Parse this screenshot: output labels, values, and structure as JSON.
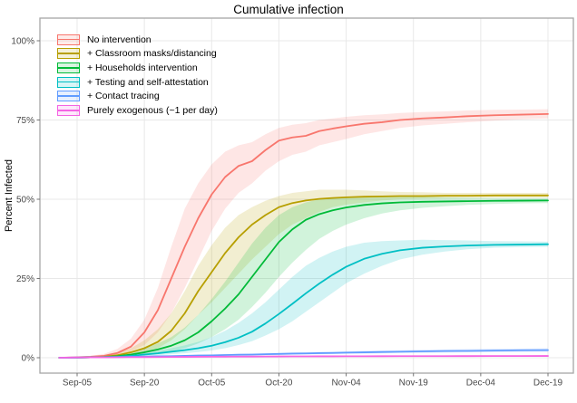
{
  "chart_data": {
    "type": "line",
    "title": "Cumulative infection",
    "xlabel": "",
    "ylabel": "Percent Infected",
    "ylim": [
      0,
      100
    ],
    "grid": "major-only",
    "legend_position": "top-left-inside",
    "x_unit": "days-since-Aug-28",
    "x_ticks": [
      {
        "label": "Sep-05",
        "day": 8
      },
      {
        "label": "Sep-20",
        "day": 23
      },
      {
        "label": "Oct-05",
        "day": 38
      },
      {
        "label": "Oct-20",
        "day": 53
      },
      {
        "label": "Nov-04",
        "day": 68
      },
      {
        "label": "Nov-19",
        "day": 83
      },
      {
        "label": "Dec-04",
        "day": 98
      },
      {
        "label": "Dec-19",
        "day": 113
      }
    ],
    "y_ticks": [
      {
        "label": "0%",
        "value": 0
      },
      {
        "label": "25%",
        "value": 25
      },
      {
        "label": "50%",
        "value": 50
      },
      {
        "label": "75%",
        "value": 75
      },
      {
        "label": "100%",
        "value": 100
      }
    ],
    "x_days": [
      4,
      7,
      11,
      14,
      17,
      20,
      23,
      26,
      29,
      32,
      35,
      38,
      41,
      44,
      47,
      50,
      53,
      56,
      59,
      62,
      65,
      68,
      72,
      76,
      80,
      85,
      90,
      95,
      101,
      107,
      113
    ],
    "series": [
      {
        "id": "no_intervention",
        "label": "No intervention",
        "color": "#F8766D",
        "mean": [
          0,
          0.1,
          0.3,
          0.6,
          1.5,
          3.5,
          8,
          15,
          25,
          35,
          44,
          51.5,
          57,
          60.5,
          62,
          65.5,
          68.5,
          69.5,
          70,
          71.5,
          72.3,
          73,
          73.8,
          74.3,
          75,
          75.5,
          75.8,
          76.2,
          76.5,
          76.7,
          76.9
        ],
        "lo": [
          0,
          0,
          0.1,
          0.3,
          0.8,
          2,
          4,
          8,
          14,
          22,
          31,
          40,
          47,
          52,
          55,
          59,
          62,
          64,
          65,
          67,
          68,
          69,
          70.5,
          71.5,
          72.5,
          73.3,
          73.8,
          74.3,
          74.8,
          75.2,
          75.5
        ],
        "hi": [
          0,
          0.2,
          0.6,
          1.2,
          2.8,
          6,
          12,
          22,
          35,
          47,
          55,
          61,
          65,
          67,
          68,
          70.5,
          72.5,
          73.5,
          74,
          75,
          75.5,
          76,
          76.5,
          76.8,
          77.2,
          77.5,
          77.7,
          78,
          78.2,
          78.3,
          78.4
        ]
      },
      {
        "id": "classroom_masks",
        "label": "+ Classroom masks/distancing",
        "color": "#B79F00",
        "mean": [
          0,
          0,
          0.1,
          0.3,
          0.8,
          1.7,
          3,
          5,
          8.5,
          14,
          21,
          27,
          33,
          38,
          42,
          45,
          47.5,
          48.8,
          49.6,
          50.1,
          50.4,
          50.6,
          50.8,
          50.9,
          51,
          51,
          51.1,
          51.1,
          51.2,
          51.2,
          51.2
        ],
        "lo": [
          0,
          0,
          0,
          0.1,
          0.4,
          0.9,
          1.7,
          3,
          5.5,
          9,
          13.5,
          17.5,
          22,
          26.5,
          31,
          35,
          39,
          42,
          44,
          46,
          47.5,
          48.3,
          49,
          49.6,
          50,
          50.2,
          50.3,
          50.4,
          50.5,
          50.5,
          50.5
        ],
        "hi": [
          0,
          0.1,
          0.3,
          0.7,
          1.5,
          3,
          5.5,
          9,
          14,
          21,
          29,
          35.5,
          41,
          45,
          47.5,
          49.5,
          51,
          52,
          52.5,
          53,
          53,
          53,
          52.8,
          52.5,
          52.3,
          52.2,
          52,
          52,
          52,
          52,
          52
        ]
      },
      {
        "id": "households",
        "label": "+ Households intervention",
        "color": "#00BA38",
        "mean": [
          0,
          0,
          0.1,
          0.2,
          0.5,
          1,
          1.7,
          2.6,
          3.8,
          5.5,
          8,
          11.5,
          15.5,
          20,
          25.5,
          31,
          36.5,
          40.5,
          43.5,
          45.3,
          46.5,
          47.4,
          48.2,
          48.7,
          49,
          49.2,
          49.3,
          49.4,
          49.5,
          49.55,
          49.6
        ],
        "lo": [
          0,
          0,
          0,
          0.1,
          0.2,
          0.5,
          0.9,
          1.4,
          2,
          3,
          4.5,
          6.5,
          9,
          12,
          16,
          20.5,
          25.5,
          30,
          34,
          37.5,
          40,
          42,
          44,
          45.5,
          46.5,
          47.3,
          47.8,
          48.2,
          48.5,
          48.7,
          48.8
        ],
        "hi": [
          0,
          0.1,
          0.2,
          0.5,
          1,
          1.8,
          3,
          4.5,
          6.5,
          9.5,
          13.5,
          18.5,
          24,
          30,
          36,
          41,
          45,
          47.5,
          49,
          50,
          50.5,
          50.8,
          51,
          51,
          50.9,
          50.8,
          50.6,
          50.5,
          50.4,
          50.4,
          50.4
        ]
      },
      {
        "id": "testing",
        "label": "+ Testing and self-attestation",
        "color": "#00BFC4",
        "mean": [
          0,
          0,
          0.1,
          0.2,
          0.3,
          0.6,
          1,
          1.4,
          1.9,
          2.4,
          3,
          3.8,
          4.9,
          6.3,
          8.2,
          10.8,
          13.8,
          17,
          20.3,
          23.4,
          26.2,
          28.7,
          31.2,
          32.8,
          33.9,
          34.7,
          35.1,
          35.4,
          35.6,
          35.7,
          35.8
        ],
        "lo": [
          0,
          0,
          0,
          0.1,
          0.2,
          0.3,
          0.5,
          0.8,
          1.1,
          1.4,
          1.8,
          2.3,
          3,
          4,
          5.2,
          7,
          9,
          11.5,
          14.5,
          17.5,
          20.5,
          23.5,
          26.5,
          29,
          31,
          32.5,
          33.5,
          34.2,
          34.7,
          34.9,
          35
        ],
        "hi": [
          0,
          0.1,
          0.2,
          0.4,
          0.6,
          1,
          1.6,
          2.2,
          3,
          3.9,
          5,
          6.5,
          8.5,
          11,
          14,
          17.5,
          21.5,
          25.5,
          29,
          31.5,
          33.5,
          35,
          36.3,
          36.8,
          37,
          37.2,
          37.1,
          37,
          36.8,
          36.7,
          36.6
        ]
      },
      {
        "id": "contact_tracing",
        "label": "+ Contact tracing",
        "color": "#619CFF",
        "mean": [
          0,
          0.05,
          0.1,
          0.15,
          0.2,
          0.3,
          0.35,
          0.45,
          0.5,
          0.6,
          0.7,
          0.75,
          0.85,
          0.95,
          1,
          1.1,
          1.2,
          1.3,
          1.35,
          1.45,
          1.5,
          1.6,
          1.7,
          1.8,
          1.9,
          2,
          2.1,
          2.15,
          2.25,
          2.35,
          2.4
        ],
        "lo": [
          0,
          0,
          0.05,
          0.1,
          0.15,
          0.2,
          0.25,
          0.3,
          0.35,
          0.45,
          0.5,
          0.55,
          0.6,
          0.7,
          0.75,
          0.8,
          0.9,
          0.95,
          1,
          1.1,
          1.15,
          1.2,
          1.3,
          1.4,
          1.45,
          1.55,
          1.6,
          1.7,
          1.75,
          1.8,
          1.85
        ],
        "hi": [
          0,
          0.1,
          0.15,
          0.25,
          0.3,
          0.4,
          0.5,
          0.6,
          0.7,
          0.8,
          0.9,
          1,
          1.1,
          1.2,
          1.3,
          1.4,
          1.5,
          1.65,
          1.75,
          1.85,
          1.95,
          2.05,
          2.2,
          2.3,
          2.4,
          2.55,
          2.65,
          2.75,
          2.85,
          2.9,
          3
        ]
      },
      {
        "id": "exogenous",
        "label": "Purely exogenous (~1 per day)",
        "color": "#F564E3",
        "mean": [
          0,
          0.05,
          0.1,
          0.12,
          0.15,
          0.18,
          0.2,
          0.22,
          0.25,
          0.27,
          0.3,
          0.32,
          0.34,
          0.36,
          0.38,
          0.4,
          0.41,
          0.42,
          0.43,
          0.44,
          0.45,
          0.46,
          0.47,
          0.48,
          0.49,
          0.5,
          0.51,
          0.52,
          0.53,
          0.54,
          0.55
        ],
        "lo": [
          0,
          0,
          0.02,
          0.04,
          0.06,
          0.08,
          0.1,
          0.12,
          0.14,
          0.16,
          0.18,
          0.2,
          0.21,
          0.22,
          0.24,
          0.26,
          0.27,
          0.28,
          0.29,
          0.3,
          0.31,
          0.32,
          0.33,
          0.34,
          0.35,
          0.36,
          0.37,
          0.38,
          0.39,
          0.4,
          0.41
        ],
        "hi": [
          0.05,
          0.12,
          0.18,
          0.22,
          0.26,
          0.3,
          0.33,
          0.36,
          0.4,
          0.43,
          0.46,
          0.49,
          0.51,
          0.53,
          0.55,
          0.58,
          0.6,
          0.61,
          0.63,
          0.64,
          0.66,
          0.67,
          0.69,
          0.7,
          0.72,
          0.73,
          0.75,
          0.76,
          0.78,
          0.79,
          0.8
        ]
      }
    ]
  },
  "style": {
    "band_opacity": 0.18,
    "line_width": 1.8,
    "grid_color": "#E8E8E8",
    "border_color": "#A6A6A6",
    "tick_color": "#737373",
    "label_color": "#4A4A4A",
    "title_color": "#000000"
  }
}
